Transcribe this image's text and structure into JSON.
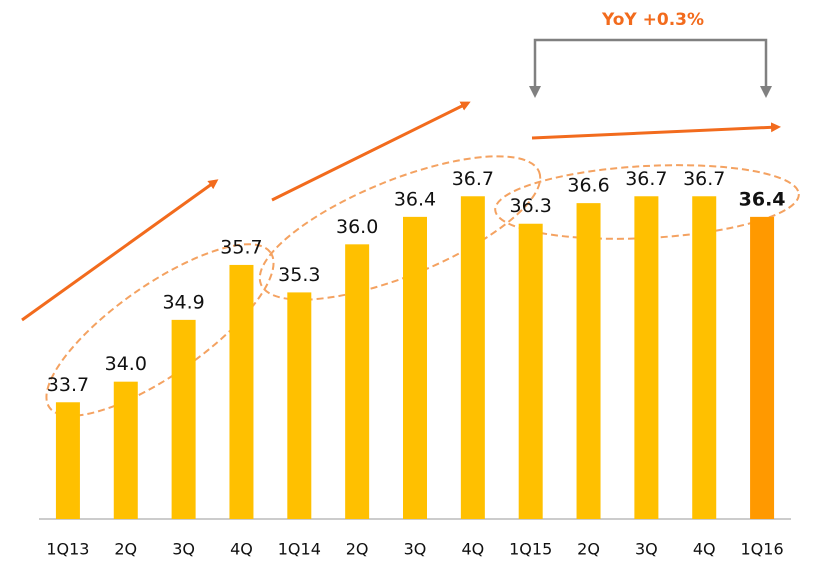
{
  "chart_data": {
    "type": "bar",
    "annotation": "YoY +0.3%",
    "categories": [
      "1Q13",
      "2Q",
      "3Q",
      "4Q",
      "1Q14",
      "2Q",
      "3Q",
      "4Q",
      "1Q15",
      "2Q",
      "3Q",
      "4Q",
      "1Q16"
    ],
    "values": [
      33.7,
      34.0,
      34.9,
      35.7,
      35.3,
      36.0,
      36.4,
      36.7,
      36.3,
      36.6,
      36.7,
      36.7,
      36.4
    ],
    "value_labels": [
      "33.7",
      "34.0",
      "34.9",
      "35.7",
      "35.3",
      "36.0",
      "36.4",
      "36.7",
      "36.3",
      "36.6",
      "36.7",
      "36.7",
      "36.4"
    ],
    "colors": [
      "#ffc000",
      "#ffc000",
      "#ffc000",
      "#ffc000",
      "#ffc000",
      "#ffc000",
      "#ffc000",
      "#ffc000",
      "#ffc000",
      "#ffc000",
      "#ffc000",
      "#ffc000",
      "#ff9900"
    ],
    "ylim": [
      32,
      39.5
    ]
  }
}
